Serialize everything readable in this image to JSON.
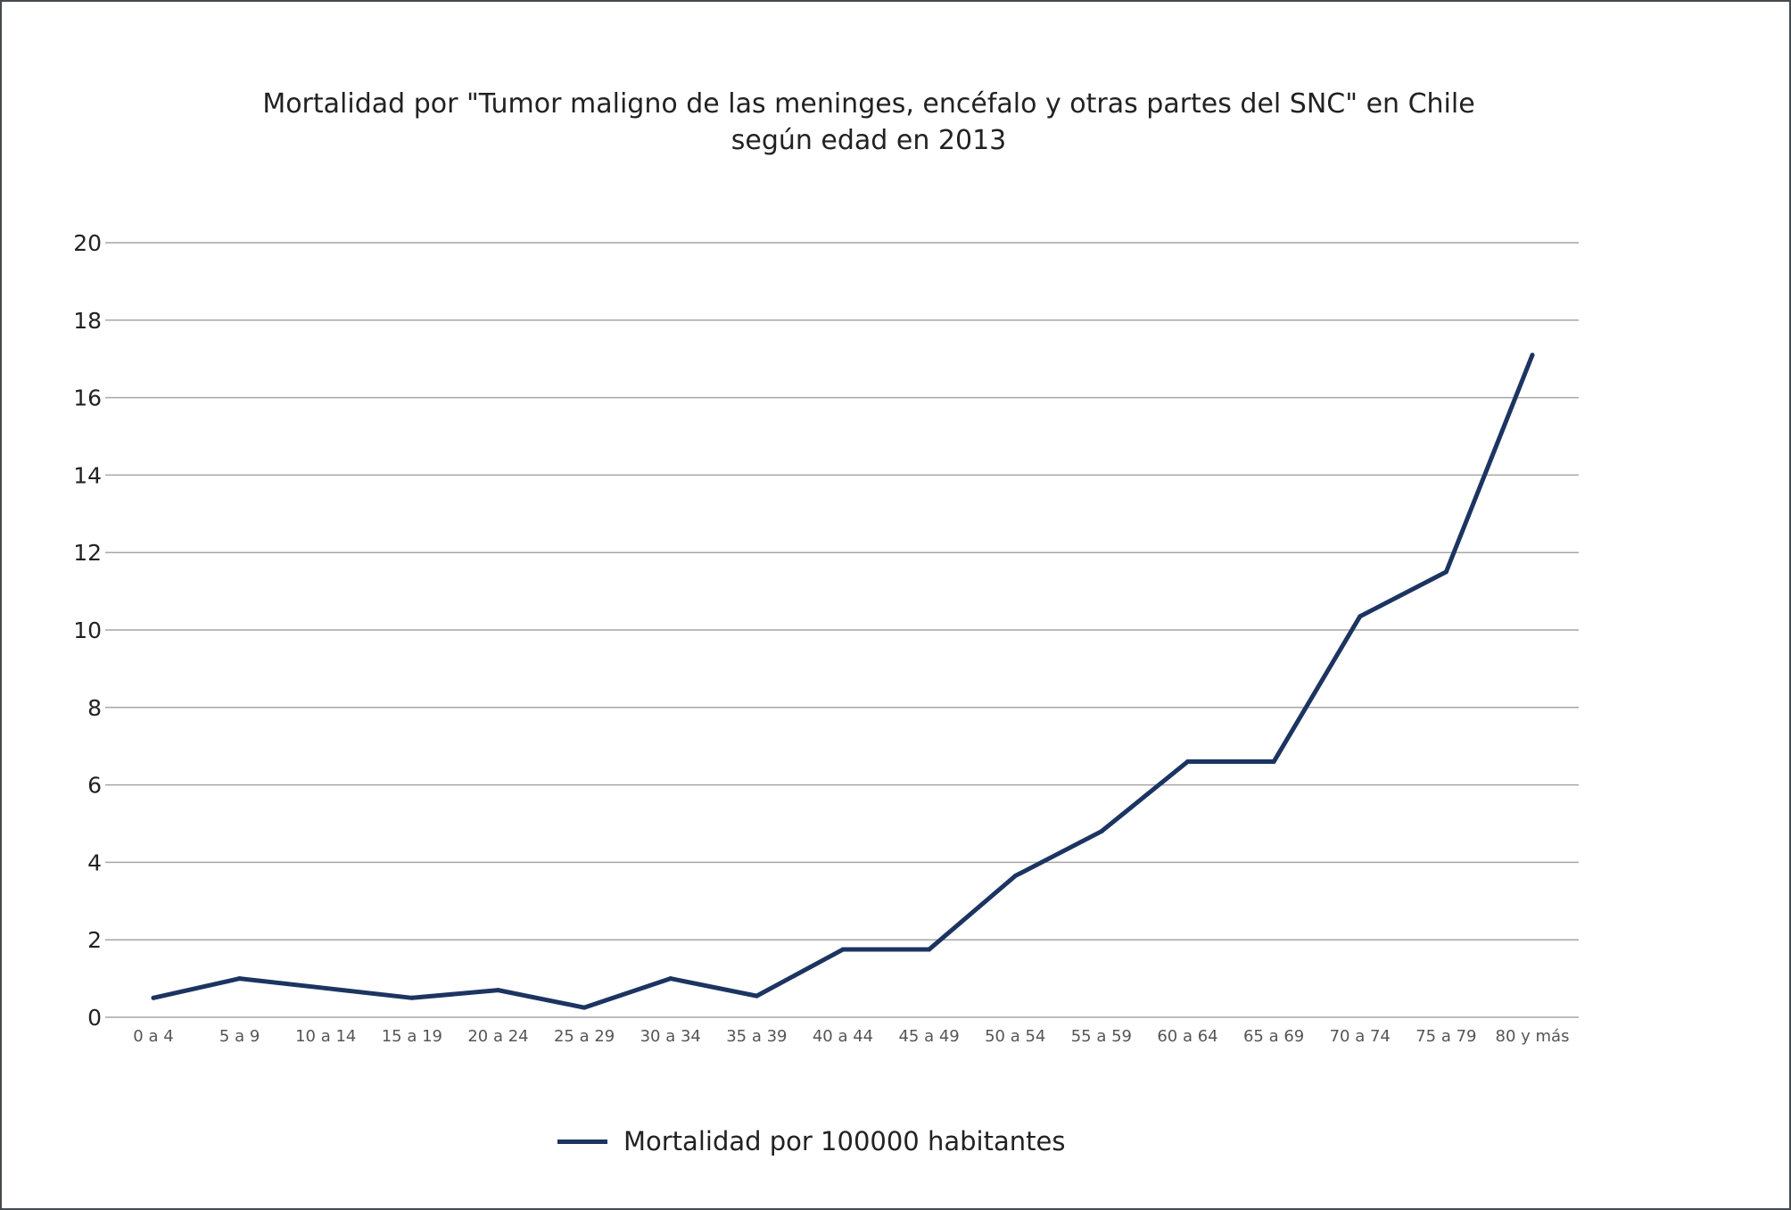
{
  "chart_data": {
    "type": "line",
    "title_lines": [
      "Mortalidad por \"Tumor maligno de las meninges, encéfalo y otras partes del SNC\" en Chile",
      "según edad en 2013"
    ],
    "categories": [
      "0 a 4",
      "5 a 9",
      "10 a 14",
      "15 a 19",
      "20 a 24",
      "25 a 29",
      "30 a 34",
      "35 a 39",
      "40 a 44",
      "45 a 49",
      "50 a 54",
      "55 a 59",
      "60 a 64",
      "65 a 69",
      "70 a 74",
      "75 a 79",
      "80 y más"
    ],
    "series": [
      {
        "name": "Mortalidad por 100000 habitantes",
        "values": [
          0.5,
          1.0,
          0.75,
          0.5,
          0.7,
          0.25,
          1.0,
          0.55,
          1.75,
          1.75,
          3.65,
          4.8,
          6.6,
          6.6,
          10.35,
          11.5,
          17.1
        ],
        "color": "#1c3461"
      }
    ],
    "ylim": [
      0,
      20
    ],
    "yticks": [
      0,
      2,
      4,
      6,
      8,
      10,
      12,
      14,
      16,
      18,
      20
    ],
    "grid": true,
    "legend_position": "bottom"
  }
}
